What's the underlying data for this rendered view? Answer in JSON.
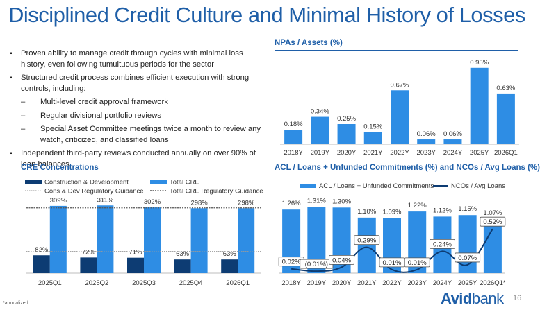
{
  "page": {
    "title": "Disciplined Credit Culture and Minimal History of Losses",
    "footnote": "*annualized",
    "logo": {
      "avid": "Avid",
      "bank": "bank"
    },
    "page_number": "16",
    "colors": {
      "navy": "#0d3c73",
      "blue": "#2e8de4",
      "accent": "#1f5fa8",
      "line": "#0d3c73"
    }
  },
  "bullets": [
    {
      "level": 1,
      "text": "Proven ability to manage credit through cycles with minimal loss history, even following tumultuous periods for the sector"
    },
    {
      "level": 1,
      "text": "Structured credit process combines efficient execution with strong controls, including:"
    },
    {
      "level": 2,
      "text": "Multi-level credit approval framework"
    },
    {
      "level": 2,
      "text": "Regular divisional portfolio reviews"
    },
    {
      "level": 2,
      "text": "Special Asset Committee meetings twice a month to review any watch, criticized, and classified loans"
    },
    {
      "level": 1,
      "text": "Independent third-party reviews conducted annually on over 90% of loan balances"
    }
  ],
  "chart_data": [
    {
      "type": "bar",
      "title": "NPAs / Assets (%)",
      "categories": [
        "2018Y",
        "2019Y",
        "2020Y",
        "2021Y",
        "2022Y",
        "2023Y",
        "2024Y",
        "2025Y",
        "2026Q1"
      ],
      "values": [
        0.18,
        0.34,
        0.25,
        0.15,
        0.67,
        0.06,
        0.06,
        0.95,
        0.63
      ],
      "data_labels": [
        "0.18%",
        "0.34%",
        "0.25%",
        "0.15%",
        "0.67%",
        "0.06%",
        "0.06%",
        "0.95%",
        "0.63%"
      ],
      "ylim": [
        0,
        1.0
      ],
      "grid": false,
      "legend": "none"
    },
    {
      "type": "bar",
      "title": "CRE Concentrations",
      "categories": [
        "2025Q1",
        "2025Q2",
        "2025Q3",
        "2025Q4",
        "2026Q1"
      ],
      "series": [
        {
          "name": "Construction & Development",
          "values": [
            82,
            72,
            71,
            63,
            63
          ],
          "labels": [
            "82%",
            "72%",
            "71%",
            "63%",
            "63%"
          ]
        },
        {
          "name": "Total CRE",
          "values": [
            309,
            311,
            302,
            298,
            298
          ],
          "labels": [
            "309%",
            "311%",
            "302%",
            "298%",
            "298%"
          ]
        }
      ],
      "reference_lines": [
        {
          "name": "Cons & Dev Regulatory Guidance",
          "value": 100
        },
        {
          "name": "Total CRE Regulatory Guidance",
          "value": 300
        }
      ],
      "ylim": [
        0,
        350
      ],
      "grid": false,
      "legend": "top"
    },
    {
      "type": "bar",
      "title": "ACL / Loans + Unfunded Commitments (%) and NCOs / Avg Loans (%)",
      "categories": [
        "2018Y",
        "2019Y",
        "2020Y",
        "2021Y",
        "2022Y",
        "2023Y",
        "2024Y",
        "2025Y",
        "2026Q1*"
      ],
      "series": [
        {
          "name": "ACL / Loans + Unfunded Commitments",
          "type": "bar",
          "values": [
            1.26,
            1.31,
            1.3,
            1.1,
            1.09,
            1.22,
            1.12,
            1.15,
            1.07
          ],
          "labels": [
            "1.26%",
            "1.31%",
            "1.30%",
            "1.10%",
            "1.09%",
            "1.22%",
            "1.12%",
            "1.15%",
            "1.07%"
          ]
        },
        {
          "name": "NCOs / Avg Loans",
          "type": "line",
          "values": [
            0.02,
            -0.01,
            0.04,
            0.29,
            0.01,
            0.01,
            0.24,
            0.07,
            0.52
          ],
          "labels": [
            "0.02%",
            "(0.01%)",
            "0.04%",
            "0.29%",
            "0.01%",
            "0.01%",
            "0.24%",
            "0.07%",
            "0.52%"
          ]
        }
      ],
      "ylim": [
        0,
        1.4
      ],
      "grid": false,
      "legend": "top"
    }
  ]
}
